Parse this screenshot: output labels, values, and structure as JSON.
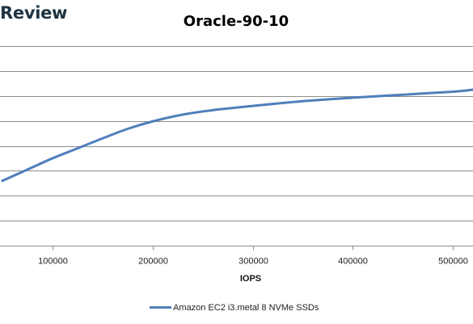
{
  "header": {
    "logo_text": "Review"
  },
  "chart_data": {
    "type": "line",
    "title": "Oracle-90-10",
    "xlabel": "IOPS",
    "ylabel": "",
    "xlim": [
      50000,
      520000
    ],
    "ylim": [
      0,
      8
    ],
    "x_ticks": [
      100000,
      200000,
      300000,
      400000,
      500000
    ],
    "x_tick_labels": [
      "100000",
      "200000",
      "300000",
      "400000",
      "500000"
    ],
    "y_gridlines": [
      1,
      2,
      3,
      4,
      5,
      6,
      7,
      8
    ],
    "grid": true,
    "legend_position": "bottom",
    "series": [
      {
        "name": "Amazon EC2 i3.metal 8 NVMe SSDs",
        "color": "#4f7fbb",
        "x": [
          50000,
          75000,
          100000,
          125000,
          150000,
          175000,
          200000,
          230000,
          260000,
          300000,
          350000,
          400000,
          450000,
          500000,
          520000
        ],
        "y": [
          2.6,
          3.05,
          3.5,
          3.9,
          4.3,
          4.68,
          4.98,
          5.25,
          5.43,
          5.6,
          5.79,
          5.93,
          6.05,
          6.17,
          6.25
        ]
      }
    ]
  }
}
